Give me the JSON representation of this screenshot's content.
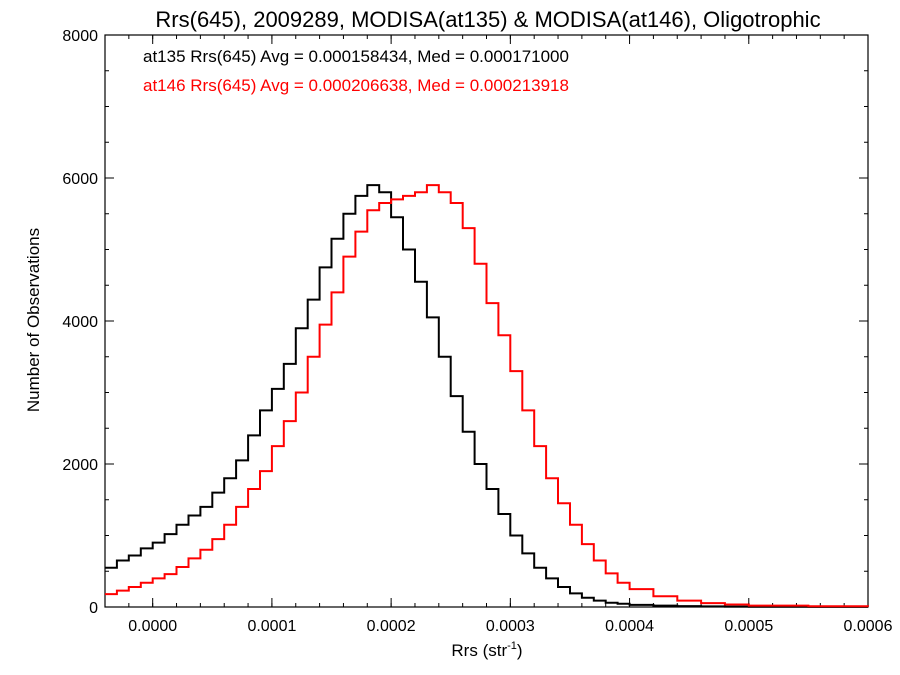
{
  "chart_data": {
    "type": "line",
    "title": "Rrs(645), 2009289, MODISA(at135) & MODISA(at146), Oligotrophic",
    "xlabel": "Rrs (str",
    "xlabel_sup": "-1",
    "xlabel_close": ")",
    "ylabel": "Number of Observations",
    "xlim": [
      -4e-05,
      0.0006
    ],
    "ylim": [
      0,
      8000
    ],
    "x_ticks": [
      0.0,
      0.0001,
      0.0002,
      0.0003,
      0.0004,
      0.0005,
      0.0006
    ],
    "x_tick_labels": [
      "0.0000",
      "0.0001",
      "0.0002",
      "0.0003",
      "0.0004",
      "0.0005",
      "0.0006"
    ],
    "y_ticks": [
      0,
      2000,
      4000,
      6000,
      8000
    ],
    "y_tick_labels": [
      "0",
      "2000",
      "4000",
      "6000",
      "8000"
    ],
    "grid": false,
    "step": true,
    "annotations": [
      {
        "text": "at135 Rrs(645) Avg = 0.000158434, Med = 0.000171000",
        "color": "#000000"
      },
      {
        "text": "at146 Rrs(645) Avg = 0.000206638, Med = 0.000213918",
        "color": "#ff0000"
      }
    ],
    "series": [
      {
        "color": "#000000",
        "x": [
          -4e-05,
          -3e-05,
          -2e-05,
          -1e-05,
          0.0,
          1e-05,
          2e-05,
          3e-05,
          4e-05,
          5e-05,
          6e-05,
          7e-05,
          8e-05,
          9e-05,
          0.0001,
          0.00011,
          0.00012,
          0.00013,
          0.00014,
          0.00015,
          0.00016,
          0.00017,
          0.00018,
          0.00019,
          0.0002,
          0.00021,
          0.00022,
          0.00023,
          0.00024,
          0.00025,
          0.00026,
          0.00027,
          0.00028,
          0.00029,
          0.0003,
          0.00031,
          0.00032,
          0.00033,
          0.00034,
          0.00035,
          0.00036,
          0.00037,
          0.00038,
          0.00039,
          0.0004,
          0.00042,
          0.00044,
          0.00046,
          0.00048,
          0.0005,
          0.00055,
          0.0006
        ],
        "values": [
          550,
          650,
          720,
          820,
          900,
          1020,
          1150,
          1280,
          1400,
          1600,
          1800,
          2050,
          2400,
          2750,
          3050,
          3400,
          3900,
          4300,
          4750,
          5150,
          5500,
          5750,
          5900,
          5800,
          5450,
          5000,
          4550,
          4050,
          3500,
          2950,
          2450,
          2000,
          1650,
          1300,
          1000,
          750,
          550,
          400,
          280,
          190,
          130,
          90,
          60,
          45,
          30,
          20,
          12,
          8,
          5,
          3,
          2,
          1
        ]
      },
      {
        "color": "#ff0000",
        "x": [
          -4e-05,
          -3e-05,
          -2e-05,
          -1e-05,
          0.0,
          1e-05,
          2e-05,
          3e-05,
          4e-05,
          5e-05,
          6e-05,
          7e-05,
          8e-05,
          9e-05,
          0.0001,
          0.00011,
          0.00012,
          0.00013,
          0.00014,
          0.00015,
          0.00016,
          0.00017,
          0.00018,
          0.00019,
          0.0002,
          0.00021,
          0.00022,
          0.00023,
          0.00024,
          0.00025,
          0.00026,
          0.00027,
          0.00028,
          0.00029,
          0.0003,
          0.00031,
          0.00032,
          0.00033,
          0.00034,
          0.00035,
          0.00036,
          0.00037,
          0.00038,
          0.00039,
          0.0004,
          0.00042,
          0.00044,
          0.00046,
          0.00048,
          0.0005,
          0.00055,
          0.0006
        ],
        "values": [
          180,
          230,
          280,
          340,
          400,
          460,
          560,
          680,
          800,
          950,
          1150,
          1400,
          1650,
          1900,
          2250,
          2600,
          3000,
          3500,
          3950,
          4400,
          4900,
          5250,
          5550,
          5650,
          5700,
          5750,
          5800,
          5900,
          5800,
          5650,
          5300,
          4800,
          4250,
          3800,
          3300,
          2750,
          2250,
          1800,
          1450,
          1150,
          880,
          650,
          470,
          340,
          250,
          150,
          90,
          55,
          35,
          20,
          10,
          5
        ]
      }
    ]
  }
}
